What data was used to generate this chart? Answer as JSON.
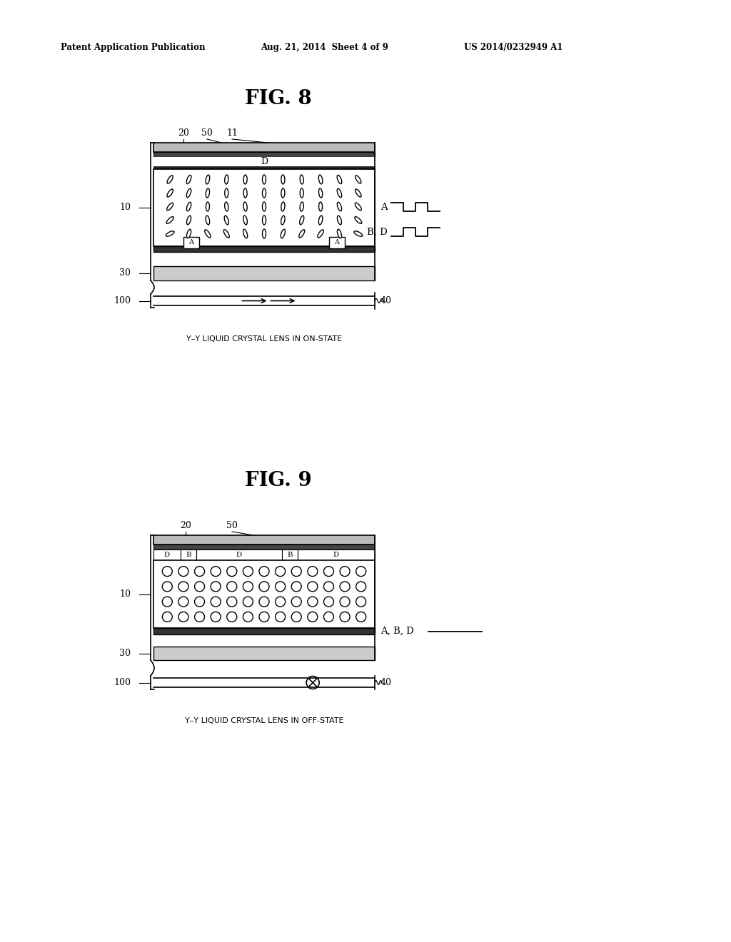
{
  "bg_color": "#ffffff",
  "header_left": "Patent Application Publication",
  "header_mid": "Aug. 21, 2014  Sheet 4 of 9",
  "header_right": "US 2014/0232949 A1",
  "fig8_title": "FIG. 8",
  "fig9_title": "FIG. 9",
  "fig8_caption": "Y–Y LIQUID CRYSTAL LENS IN ON-STATE",
  "fig9_caption": "Y–Y LIQUID CRYSTAL LENS IN OFF-STATE"
}
